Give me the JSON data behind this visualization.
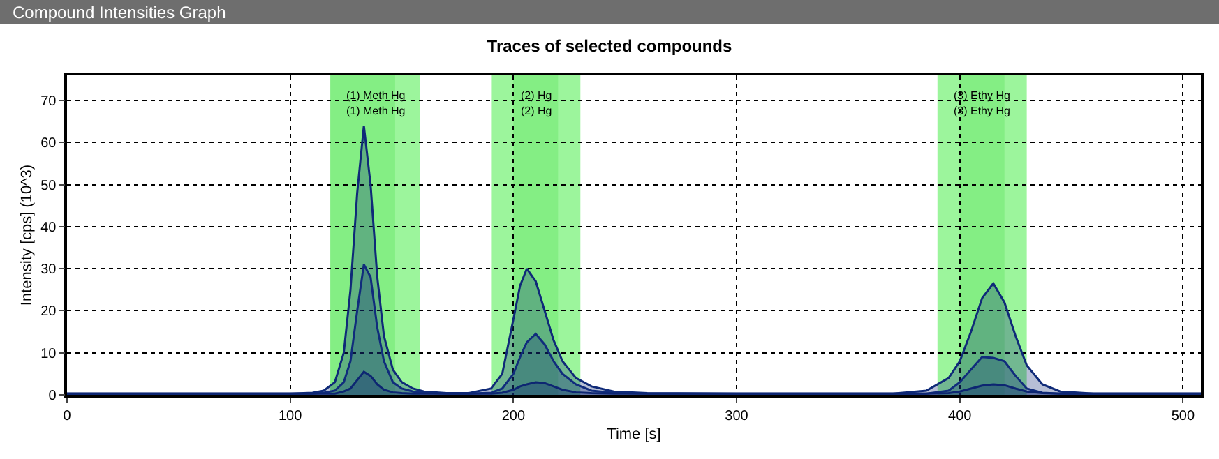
{
  "chart_data": {
    "type": "area",
    "title": "Traces of selected compounds",
    "xlabel": "Time [s]",
    "ylabel": "Intensity [cps] (10^3)",
    "annotations": [
      "Compound Intensities Graph"
    ],
    "x": [
      0,
      100,
      110,
      115,
      120,
      124,
      127,
      130,
      133,
      136,
      139,
      142,
      146,
      150,
      155,
      160,
      170,
      180,
      190,
      195,
      200,
      203,
      206,
      210,
      214,
      218,
      222,
      228,
      235,
      245,
      260,
      300,
      370,
      385,
      395,
      400,
      405,
      410,
      415,
      420,
      425,
      430,
      437,
      445,
      460,
      508
    ],
    "series": [
      {
        "color": "#0f2a78",
        "values": [
          0.3,
          0.3,
          0.5,
          1,
          3,
          10,
          25,
          48,
          64,
          50,
          28,
          14,
          6,
          3,
          1.5,
          0.8,
          0.4,
          0.4,
          1.5,
          5,
          18,
          26,
          30,
          27,
          20,
          13,
          8,
          4,
          2,
          0.8,
          0.4,
          0.3,
          0.3,
          1,
          4,
          8,
          15,
          23,
          26.5,
          22,
          14,
          7,
          2.5,
          0.8,
          0.3,
          0.3
        ]
      },
      {
        "color": "#102c7c",
        "values": [
          0.3,
          0.3,
          0.3,
          0.5,
          1,
          3,
          8,
          20,
          31,
          28,
          16,
          8,
          3,
          1.5,
          0.8,
          0.5,
          0.3,
          0.3,
          0.5,
          1.5,
          5,
          9,
          12.5,
          14.5,
          12,
          8,
          5,
          2.5,
          1,
          0.5,
          0.3,
          0.3,
          0.3,
          0.3,
          1,
          3,
          6,
          9,
          8.8,
          8,
          4.5,
          1.5,
          0.5,
          0.3,
          0.3,
          0.3
        ]
      },
      {
        "color": "#0d2672",
        "values": [
          0.3,
          0.3,
          0.3,
          0.3,
          0.3,
          0.8,
          1.5,
          3.5,
          5.5,
          4.5,
          2.5,
          1.2,
          0.6,
          0.4,
          0.3,
          0.3,
          0.3,
          0.3,
          0.3,
          0.5,
          1.2,
          2,
          2.5,
          3,
          2.8,
          2,
          1.2,
          0.6,
          0.4,
          0.3,
          0.3,
          0.3,
          0.3,
          0.3,
          0.4,
          0.8,
          1.5,
          2.2,
          2.5,
          2.3,
          1.5,
          0.8,
          0.4,
          0.3,
          0.3,
          0.3
        ]
      }
    ],
    "bands": [
      {
        "axis": "x",
        "from": 118,
        "to": 158,
        "label": "(1) Meth Hg",
        "color": "#9cf59c"
      },
      {
        "axis": "x",
        "from": 118,
        "to": 147,
        "label": "(1) Meth Hg",
        "color": "#84ee84"
      },
      {
        "axis": "x",
        "from": 190,
        "to": 230,
        "label": "(2) Hg",
        "color": "#9cf59c"
      },
      {
        "axis": "x",
        "from": 200,
        "to": 220,
        "label": "(2) Hg",
        "color": "#84ee84"
      },
      {
        "axis": "x",
        "from": 390,
        "to": 430,
        "label": "(3) Ethy Hg",
        "color": "#9cf59c"
      },
      {
        "axis": "x",
        "from": 400,
        "to": 420,
        "label": "(3) Ethy Hg",
        "color": "#84ee84"
      }
    ],
    "xlim": [
      0,
      508
    ],
    "xticks": [
      0,
      100,
      200,
      300,
      400,
      500
    ],
    "ylim": [
      0,
      76
    ],
    "yticks": [
      0,
      10,
      20,
      30,
      40,
      50,
      60,
      70
    ],
    "grid": true,
    "marker": "none",
    "line_style": "solid"
  }
}
